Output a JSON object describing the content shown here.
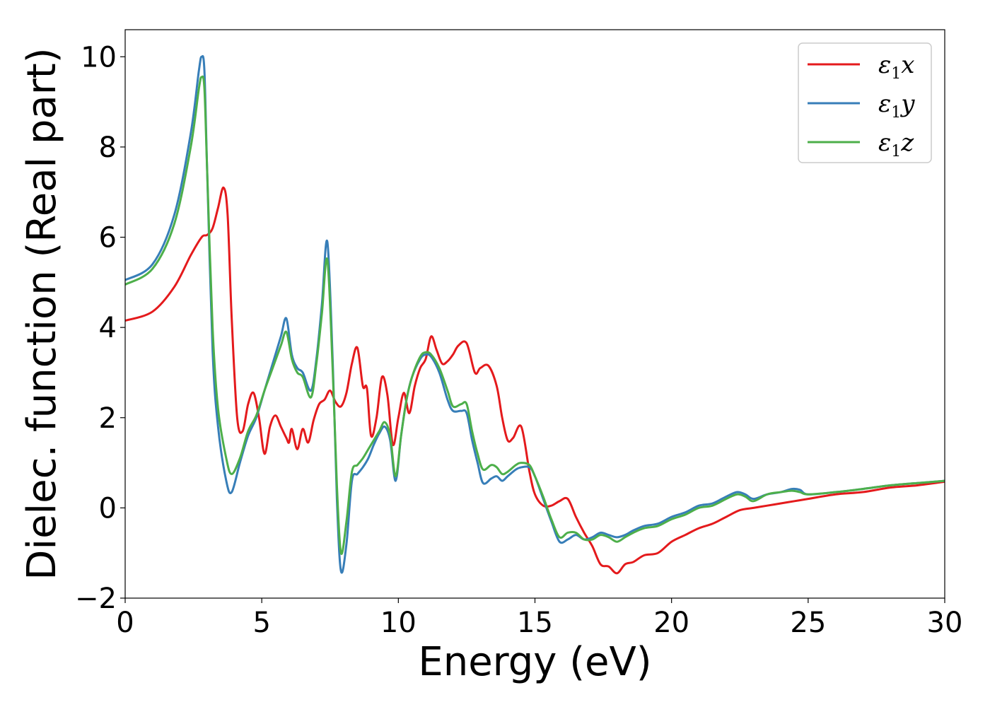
{
  "chart_data": {
    "type": "line",
    "title": "",
    "xlabel": "Energy (eV)",
    "ylabel": "Dielec. function (Real part)",
    "xlim": [
      0,
      30
    ],
    "ylim": [
      -2,
      10.6
    ],
    "xticks": [
      0,
      5,
      10,
      15,
      20,
      25,
      30
    ],
    "yticks": [
      -2,
      0,
      2,
      4,
      6,
      8,
      10
    ],
    "xtick_labels": [
      "0",
      "5",
      "10",
      "15",
      "20",
      "25",
      "30"
    ],
    "ytick_labels": [
      "−2",
      "0",
      "2",
      "4",
      "6",
      "8",
      "10"
    ],
    "grid": false,
    "legend_position": "top-right",
    "series": [
      {
        "name": "ε₁x",
        "legend_base": "ε",
        "legend_sub": "1",
        "legend_var": "x",
        "color": "#e41a1c",
        "x": [
          0,
          1,
          1.8,
          2.4,
          2.8,
          3.0,
          3.2,
          3.4,
          3.6,
          3.75,
          3.9,
          4.1,
          4.3,
          4.5,
          4.7,
          4.9,
          5.1,
          5.3,
          5.5,
          5.7,
          5.9,
          6.0,
          6.1,
          6.3,
          6.5,
          6.7,
          6.9,
          7.1,
          7.3,
          7.5,
          7.7,
          7.9,
          8.1,
          8.3,
          8.5,
          8.7,
          8.85,
          9.0,
          9.2,
          9.4,
          9.6,
          9.8,
          10.0,
          10.2,
          10.4,
          10.6,
          10.8,
          11.0,
          11.2,
          11.4,
          11.6,
          11.8,
          12.0,
          12.2,
          12.5,
          12.8,
          13.0,
          13.3,
          13.6,
          13.8,
          14.0,
          14.2,
          14.5,
          14.8,
          15.0,
          15.3,
          15.6,
          15.9,
          16.2,
          16.5,
          16.8,
          17.1,
          17.4,
          17.7,
          18.0,
          18.3,
          18.6,
          19.0,
          19.5,
          20.0,
          20.5,
          21.0,
          21.5,
          22.0,
          22.5,
          23.0,
          23.5,
          24.0,
          24.5,
          25.0,
          26.0,
          27.0,
          28.0,
          29.0,
          30.0
        ],
        "values": [
          4.15,
          4.35,
          4.9,
          5.6,
          6.0,
          6.05,
          6.2,
          6.65,
          7.1,
          6.5,
          4.2,
          2.0,
          1.7,
          2.3,
          2.55,
          2.0,
          1.2,
          1.8,
          2.05,
          1.8,
          1.55,
          1.45,
          1.75,
          1.3,
          1.75,
          1.45,
          1.95,
          2.3,
          2.4,
          2.6,
          2.35,
          2.25,
          2.55,
          3.2,
          3.55,
          2.7,
          2.65,
          1.6,
          2.0,
          2.9,
          2.5,
          1.4,
          2.0,
          2.55,
          2.1,
          2.7,
          3.1,
          3.3,
          3.8,
          3.5,
          3.2,
          3.25,
          3.4,
          3.6,
          3.65,
          3.0,
          3.1,
          3.15,
          2.7,
          2.0,
          1.5,
          1.55,
          1.8,
          0.8,
          0.3,
          0.05,
          0.05,
          0.15,
          0.2,
          -0.2,
          -0.55,
          -0.85,
          -1.25,
          -1.3,
          -1.45,
          -1.25,
          -1.2,
          -1.05,
          -1.0,
          -0.75,
          -0.6,
          -0.45,
          -0.35,
          -0.2,
          -0.05,
          0.0,
          0.05,
          0.1,
          0.15,
          0.2,
          0.3,
          0.35,
          0.45,
          0.5,
          0.58
        ]
      },
      {
        "name": "ε₁y",
        "legend_base": "ε",
        "legend_sub": "1",
        "legend_var": "y",
        "color": "#377eb8",
        "x": [
          0,
          1,
          1.8,
          2.4,
          2.7,
          2.8,
          2.9,
          3.0,
          3.2,
          3.4,
          3.7,
          3.9,
          4.2,
          4.5,
          4.8,
          5.1,
          5.4,
          5.7,
          5.9,
          6.1,
          6.3,
          6.5,
          6.8,
          7.0,
          7.2,
          7.4,
          7.6,
          7.75,
          7.9,
          8.1,
          8.3,
          8.5,
          8.7,
          8.9,
          9.1,
          9.3,
          9.5,
          9.7,
          9.9,
          10.1,
          10.3,
          10.5,
          10.8,
          11.0,
          11.2,
          11.5,
          11.8,
          12.0,
          12.3,
          12.5,
          12.7,
          12.9,
          13.1,
          13.4,
          13.6,
          13.8,
          14.0,
          14.3,
          14.5,
          14.8,
          15.0,
          15.3,
          15.6,
          15.9,
          16.2,
          16.5,
          16.8,
          17.1,
          17.4,
          17.7,
          18.0,
          18.3,
          18.6,
          19.0,
          19.5,
          20.0,
          20.5,
          21.0,
          21.5,
          22.0,
          22.4,
          22.7,
          23.0,
          23.5,
          24.0,
          24.4,
          24.7,
          25.0,
          26.0,
          27.0,
          28.0,
          29.0,
          30.0
        ],
        "values": [
          5.05,
          5.4,
          6.5,
          8.3,
          9.7,
          10.0,
          9.7,
          7.5,
          3.5,
          1.8,
          0.6,
          0.35,
          1.0,
          1.6,
          2.0,
          2.6,
          3.2,
          3.8,
          4.2,
          3.4,
          3.1,
          3.0,
          2.6,
          3.3,
          4.5,
          5.9,
          3.2,
          0.2,
          -1.4,
          -0.8,
          0.6,
          0.75,
          0.9,
          1.1,
          1.4,
          1.65,
          1.8,
          1.5,
          0.6,
          1.6,
          2.4,
          2.9,
          3.3,
          3.4,
          3.35,
          3.0,
          2.4,
          2.15,
          2.15,
          2.1,
          1.5,
          1.0,
          0.55,
          0.65,
          0.7,
          0.6,
          0.7,
          0.85,
          0.9,
          0.9,
          0.7,
          0.2,
          -0.3,
          -0.75,
          -0.7,
          -0.6,
          -0.7,
          -0.65,
          -0.55,
          -0.6,
          -0.65,
          -0.6,
          -0.5,
          -0.4,
          -0.35,
          -0.2,
          -0.1,
          0.05,
          0.1,
          0.25,
          0.35,
          0.3,
          0.2,
          0.3,
          0.35,
          0.42,
          0.4,
          0.3,
          0.35,
          0.42,
          0.5,
          0.55,
          0.6
        ]
      },
      {
        "name": "ε₁z",
        "legend_base": "ε",
        "legend_sub": "1",
        "legend_var": "z",
        "color": "#4daf4a",
        "x": [
          0,
          1,
          1.8,
          2.4,
          2.7,
          2.8,
          2.9,
          3.0,
          3.2,
          3.4,
          3.7,
          3.9,
          4.2,
          4.5,
          4.8,
          5.1,
          5.4,
          5.7,
          5.9,
          6.1,
          6.3,
          6.5,
          6.8,
          7.0,
          7.2,
          7.4,
          7.6,
          7.75,
          7.9,
          8.1,
          8.3,
          8.5,
          8.7,
          8.9,
          9.1,
          9.3,
          9.5,
          9.7,
          9.9,
          10.1,
          10.3,
          10.5,
          10.8,
          11.0,
          11.2,
          11.5,
          11.8,
          12.0,
          12.3,
          12.5,
          12.7,
          12.9,
          13.1,
          13.4,
          13.6,
          13.8,
          14.0,
          14.3,
          14.5,
          14.8,
          15.0,
          15.3,
          15.6,
          15.9,
          16.2,
          16.5,
          16.8,
          17.1,
          17.4,
          17.7,
          18.0,
          18.3,
          18.6,
          19.0,
          19.5,
          20.0,
          20.5,
          21.0,
          21.5,
          22.0,
          22.4,
          22.7,
          23.0,
          23.5,
          24.0,
          24.4,
          24.7,
          25.0,
          26.0,
          27.0,
          28.0,
          29.0,
          30.0
        ],
        "values": [
          4.95,
          5.3,
          6.3,
          8.0,
          9.3,
          9.55,
          9.3,
          7.5,
          4.0,
          2.2,
          1.1,
          0.75,
          1.1,
          1.7,
          2.05,
          2.6,
          3.1,
          3.6,
          3.9,
          3.3,
          3.0,
          2.9,
          2.45,
          3.2,
          4.3,
          5.5,
          3.0,
          0.5,
          -1.0,
          -0.3,
          0.8,
          0.95,
          1.1,
          1.3,
          1.5,
          1.7,
          1.9,
          1.6,
          0.7,
          1.6,
          2.4,
          2.9,
          3.35,
          3.45,
          3.4,
          3.1,
          2.6,
          2.25,
          2.3,
          2.3,
          1.7,
          1.2,
          0.85,
          0.95,
          0.9,
          0.75,
          0.8,
          0.95,
          1.0,
          0.95,
          0.7,
          0.25,
          -0.25,
          -0.65,
          -0.55,
          -0.55,
          -0.7,
          -0.7,
          -0.6,
          -0.65,
          -0.75,
          -0.65,
          -0.55,
          -0.45,
          -0.4,
          -0.25,
          -0.15,
          0.0,
          0.05,
          0.2,
          0.3,
          0.25,
          0.15,
          0.3,
          0.35,
          0.38,
          0.35,
          0.3,
          0.35,
          0.42,
          0.5,
          0.55,
          0.6
        ]
      }
    ]
  }
}
